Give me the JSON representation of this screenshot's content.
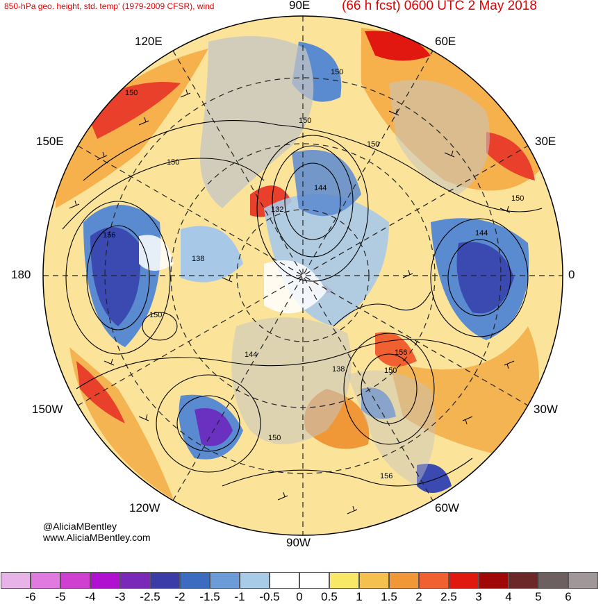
{
  "header": {
    "left_title": "850-hPa geo. height, std. temp' (1979-2009 CFSR), wind",
    "right_title": "(66 h fcst) 0600 UTC 2 May 2018"
  },
  "map": {
    "projection": "north-polar-stereographic",
    "longitude_labels": [
      {
        "id": "lon-90e",
        "text": "90E"
      },
      {
        "id": "lon-60e",
        "text": "60E"
      },
      {
        "id": "lon-120e",
        "text": "120E"
      },
      {
        "id": "lon-30e",
        "text": "30E"
      },
      {
        "id": "lon-150e",
        "text": "150E"
      },
      {
        "id": "lon-180",
        "text": "180"
      },
      {
        "id": "lon-0",
        "text": "0"
      },
      {
        "id": "lon-150w",
        "text": "150W"
      },
      {
        "id": "lon-30w",
        "text": "30W"
      },
      {
        "id": "lon-120w",
        "text": "120W"
      },
      {
        "id": "lon-60w",
        "text": "60W"
      },
      {
        "id": "lon-90w",
        "text": "90W"
      }
    ],
    "contour_labels": [
      "150",
      "150",
      "150",
      "150",
      "150",
      "144",
      "132",
      "138",
      "156",
      "150",
      "144",
      "150",
      "138",
      "156",
      "150",
      "150",
      "156",
      "144"
    ],
    "colors": {
      "land": "#c4c4c4",
      "warm_strong": "#e8402a",
      "warm": "#f4a840",
      "warm_light": "#f8d860",
      "cool_light": "#a8c8e8",
      "cool": "#5a8ad0",
      "cool_strong": "#3a4ab0",
      "cold_purple": "#6a30c0"
    }
  },
  "colorbar": {
    "colors": [
      "#e8b4e8",
      "#e07ae0",
      "#d040d0",
      "#b010d0",
      "#7a28b8",
      "#3c3ca8",
      "#3c6cc0",
      "#6c9cd8",
      "#a8cce8",
      "#ffffff",
      "#ffffff",
      "#f8e868",
      "#f4c050",
      "#f09838",
      "#f06030",
      "#e01810",
      "#a00808",
      "#6c2828",
      "#6c6060",
      "#a09898"
    ],
    "ticks": [
      "-6",
      "-5",
      "-4",
      "-3",
      "-2.5",
      "-2",
      "-1.5",
      "-1",
      "-0.5",
      "0",
      "0.5",
      "1",
      "1.5",
      "2",
      "2.5",
      "3",
      "4",
      "5",
      "6"
    ]
  },
  "credits": {
    "line1": "@AliciaMBentley",
    "line2": "www.AliciaMBentley.com"
  }
}
